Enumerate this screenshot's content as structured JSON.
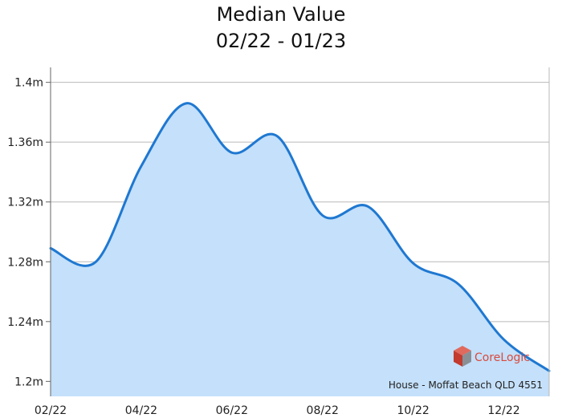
{
  "chart_data": {
    "type": "area",
    "title": "Median Value",
    "subtitle": "02/22 - 01/23",
    "xlabel": "",
    "ylabel": "",
    "x_ticks": [
      "02/22",
      "04/22",
      "06/22",
      "08/22",
      "10/22",
      "12/22"
    ],
    "y_ticks": [
      "1.2m",
      "1.24m",
      "1.28m",
      "1.32m",
      "1.36m",
      "1.4m"
    ],
    "ylim": [
      1.19,
      1.41
    ],
    "grid": true,
    "x": [
      "02/22",
      "03/22",
      "04/22",
      "05/22",
      "06/22",
      "07/22",
      "08/22",
      "09/22",
      "10/22",
      "11/22",
      "12/22",
      "01/23"
    ],
    "series": [
      {
        "values": [
          1.289,
          1.28,
          1.344,
          1.386,
          1.353,
          1.364,
          1.311,
          1.317,
          1.279,
          1.265,
          1.228,
          1.207
        ]
      }
    ],
    "line_color": "#1f78d1",
    "fill_color": "#c4e0fa",
    "caption": "House - Moffat Beach QLD 4551",
    "logo": {
      "text": "CoreLogic",
      "icon": "corelogic-cube-icon",
      "color": "#d94a3d"
    }
  }
}
